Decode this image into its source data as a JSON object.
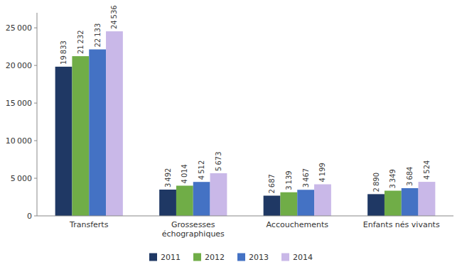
{
  "chart_data": {
    "type": "bar",
    "categories": [
      "Transferts",
      "Grossesses\néchographiques",
      "Accouchements",
      "Enfants nés vivants"
    ],
    "series": [
      {
        "name": "2011",
        "color": "#1F3864",
        "values": [
          19833,
          3492,
          2687,
          2890
        ],
        "value_labels": [
          "19 833",
          "3 492",
          "2 687",
          "2 890"
        ]
      },
      {
        "name": "2012",
        "color": "#70AD47",
        "values": [
          21232,
          4014,
          3139,
          3349
        ],
        "value_labels": [
          "21 232",
          "4 014",
          "3 139",
          "3 349"
        ]
      },
      {
        "name": "2013",
        "color": "#4472C4",
        "values": [
          22133,
          4512,
          3467,
          3684
        ],
        "value_labels": [
          "22 133",
          "4 512",
          "3 467",
          "3 684"
        ]
      },
      {
        "name": "2014",
        "color": "#C9B8E8",
        "values": [
          24536,
          5673,
          4199,
          4524
        ],
        "value_labels": [
          "24 536",
          "5 673",
          "4 199",
          "4 524"
        ]
      }
    ],
    "ylim": [
      0,
      27000
    ],
    "yticks": [
      0,
      {
        "value": 5000,
        "label": "5 000"
      },
      {
        "value": 10000,
        "label": "10 000"
      },
      {
        "value": 15000,
        "label": "15 000"
      },
      {
        "value": 20000,
        "label": "20 000"
      },
      {
        "value": 25000,
        "label": "25 000"
      }
    ],
    "grid": false,
    "data_labels": true,
    "legend": "bottom"
  }
}
